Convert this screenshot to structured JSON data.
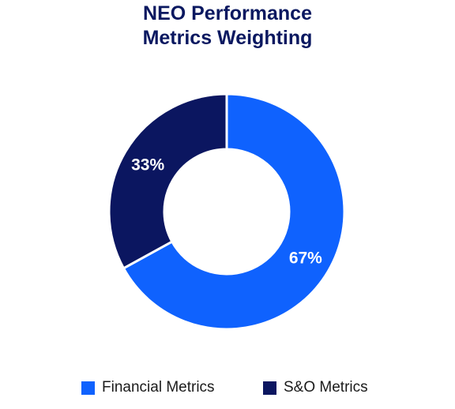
{
  "chart_data": {
    "type": "pie",
    "title": [
      "NEO Performance",
      "Metrics Weighting"
    ],
    "slices": [
      {
        "name": "Financial Metrics",
        "value": 67,
        "label": "67%",
        "color": "#0f62fe"
      },
      {
        "name": "S&O Metrics",
        "value": 33,
        "label": "33%",
        "color": "#0b1660"
      }
    ],
    "donut": true,
    "legend": "bottom"
  }
}
